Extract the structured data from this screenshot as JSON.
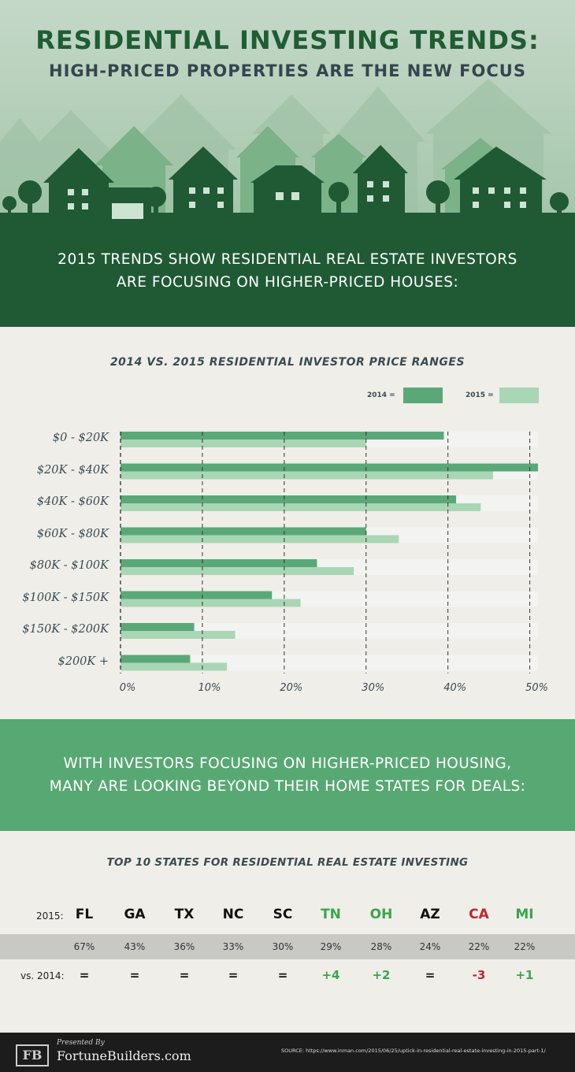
{
  "header": {
    "title": "RESIDENTIAL INVESTING TRENDS:",
    "subtitle": "HIGH-PRICED PROPERTIES ARE THE NEW FOCUS"
  },
  "intro": {
    "line1": "2015 TRENDS SHOW RESIDENTIAL REAL ESTATE INVESTORS",
    "line2": "ARE FOCUSING ON HIGHER-PRICED HOUSES:"
  },
  "colors": {
    "dark_green": "#1f5a35",
    "bar_2014": "#5aa877",
    "bar_2015": "#a9d6b4",
    "gain": "#3aa64a",
    "loss": "#c0272d"
  },
  "chart_data": {
    "type": "bar",
    "orientation": "horizontal",
    "title": "2014 VS. 2015 RESIDENTIAL INVESTOR PRICE RANGES",
    "categories": [
      "$0 - $20K",
      "$20K - $40K",
      "$40K - $60K",
      "$60K - $80K",
      "$80K - $100K",
      "$100K - $150K",
      "$150K - $200K",
      "$200K +"
    ],
    "series": [
      {
        "name": "2014",
        "values": [
          39.5,
          51,
          41,
          30,
          24,
          18.5,
          9,
          8.5
        ]
      },
      {
        "name": "2015",
        "values": [
          30,
          45.5,
          44,
          34,
          28.5,
          22,
          14,
          13
        ]
      }
    ],
    "xlim": [
      0,
      51
    ],
    "ticks": [
      "0%",
      "10%",
      "20%",
      "30%",
      "40%",
      "50%"
    ],
    "tick_values": [
      0,
      10,
      20,
      30,
      40,
      50
    ],
    "legend": [
      "2014 =",
      "2015 ="
    ],
    "legend_position": "top-right"
  },
  "band2": {
    "line1": "WITH INVESTORS FOCUSING ON HIGHER-PRICED HOUSING,",
    "line2": "MANY ARE LOOKING BEYOND THEIR HOME STATES FOR DEALS:"
  },
  "states": {
    "title": "TOP 10 STATES FOR RESIDENTIAL REAL ESTATE INVESTING",
    "row_2015_label": "2015:",
    "row_2014_label": "vs. 2014:",
    "items": [
      {
        "code": "FL",
        "pct": "67%",
        "change": "=",
        "trend": "same"
      },
      {
        "code": "GA",
        "pct": "43%",
        "change": "=",
        "trend": "same"
      },
      {
        "code": "TX",
        "pct": "36%",
        "change": "=",
        "trend": "same"
      },
      {
        "code": "NC",
        "pct": "33%",
        "change": "=",
        "trend": "same"
      },
      {
        "code": "SC",
        "pct": "30%",
        "change": "=",
        "trend": "same"
      },
      {
        "code": "TN",
        "pct": "29%",
        "change": "+4",
        "trend": "up"
      },
      {
        "code": "OH",
        "pct": "28%",
        "change": "+2",
        "trend": "up"
      },
      {
        "code": "AZ",
        "pct": "24%",
        "change": "=",
        "trend": "same"
      },
      {
        "code": "CA",
        "pct": "22%",
        "change": "-3",
        "trend": "down"
      },
      {
        "code": "MI",
        "pct": "22%",
        "change": "+1",
        "trend": "up"
      }
    ]
  },
  "footer": {
    "logo": "FB",
    "presented_by": "Presented By",
    "brand": "FortuneBuilders.com",
    "source": "SOURCE: https://www.inman.com/2015/06/25/uptick-in-residential-real-estate-investing-in-2015-part-1/"
  }
}
